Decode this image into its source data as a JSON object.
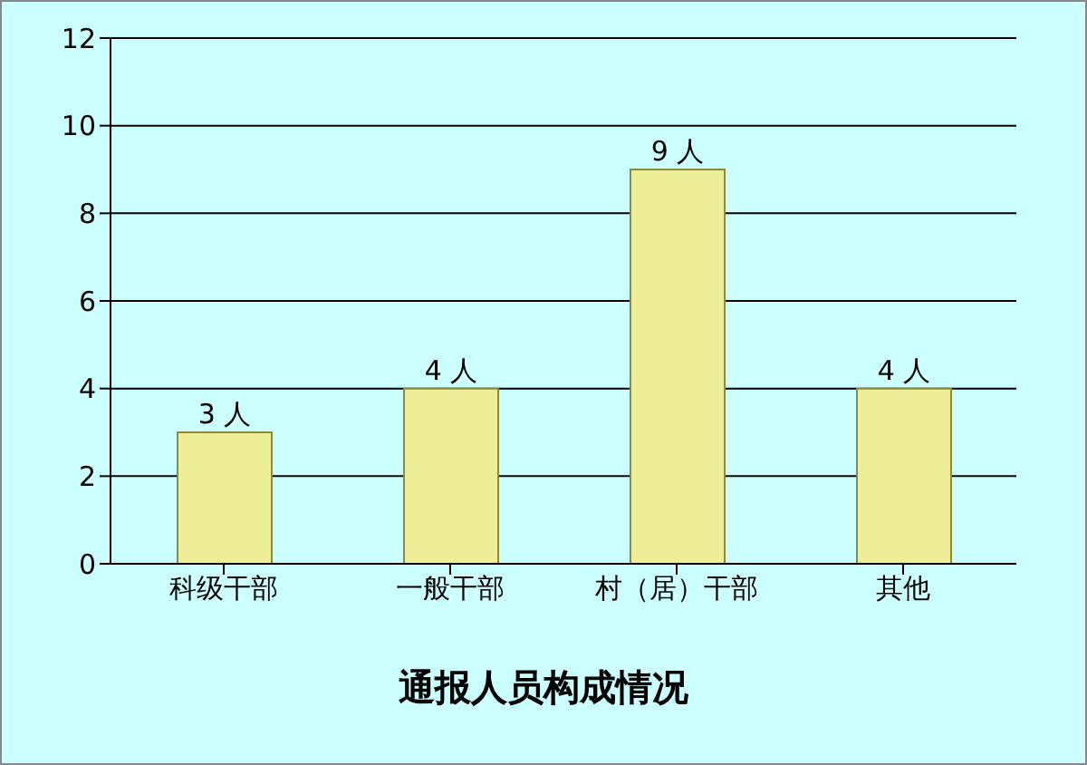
{
  "chart_data": {
    "type": "bar",
    "title": "通报人员构成情况",
    "categories": [
      "科级干部",
      "一般干部",
      "村（居）干部",
      "其他"
    ],
    "values": [
      3,
      4,
      9,
      4
    ],
    "value_labels": [
      "3 人",
      "4 人",
      "9 人",
      "4 人"
    ],
    "color": "#eeee99",
    "ylim": [
      0,
      12
    ],
    "yticks": [
      0,
      2,
      4,
      6,
      8,
      10,
      12
    ],
    "grid": "y"
  }
}
